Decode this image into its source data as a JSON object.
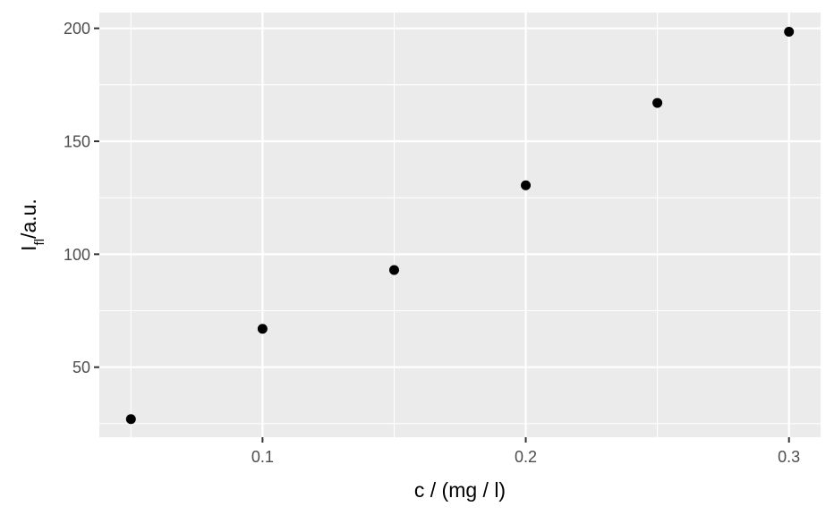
{
  "chart_data": {
    "type": "scatter",
    "title": "",
    "xlabel": "c / (mg / l)",
    "ylabel": {
      "main": "I",
      "subscript": "fl",
      "suffix": "/a.u."
    },
    "xlim": [
      0.038,
      0.312
    ],
    "ylim": [
      19,
      207
    ],
    "x_ticks": [
      0.1,
      0.2,
      0.3
    ],
    "x_tick_labels": [
      "0.1",
      "0.2",
      "0.3"
    ],
    "y_ticks": [
      50,
      100,
      150,
      200
    ],
    "y_tick_labels": [
      "50",
      "100",
      "150",
      "200"
    ],
    "grid": true,
    "legend": "none",
    "colors": {
      "panel": "#ebebeb",
      "grid": "#ffffff",
      "point": "#000000",
      "tick_text": "#4d4d4d",
      "tick_mark": "#333333"
    },
    "points": [
      {
        "x": 0.05,
        "y": 27
      },
      {
        "x": 0.1,
        "y": 67
      },
      {
        "x": 0.15,
        "y": 93
      },
      {
        "x": 0.2,
        "y": 130.5
      },
      {
        "x": 0.25,
        "y": 167
      },
      {
        "x": 0.3,
        "y": 198.5
      }
    ]
  }
}
